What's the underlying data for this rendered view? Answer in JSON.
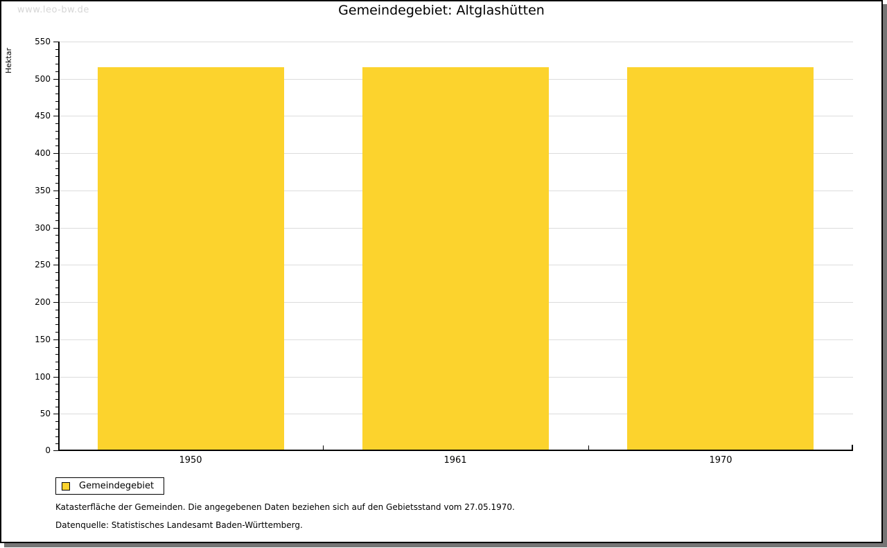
{
  "watermark": "www.leo-bw.de",
  "title": "Gemeindegebiet: Altglashütten",
  "chart_data": {
    "type": "bar",
    "title": "Gemeindegebiet: Altglashütten",
    "categories": [
      "1950",
      "1961",
      "1970"
    ],
    "series": [
      {
        "name": "Gemeindegebiet",
        "values": [
          516,
          516,
          516
        ]
      }
    ],
    "xlabel": "",
    "ylabel": "Hektar",
    "ylim": [
      0,
      550
    ],
    "ytick_step": 50,
    "yminor_step": 10,
    "grid": true,
    "legend_position": "bottom-left",
    "colors": {
      "bar": "#fcd32d",
      "grid": "#dcdcdc",
      "axis": "#000000"
    }
  },
  "legend": {
    "items": [
      {
        "label": "Gemeindegebiet",
        "color": "#fcd32d"
      }
    ]
  },
  "captions": [
    "Katasterfläche der Gemeinden. Die angegebenen Daten beziehen sich auf den Gebietsstand vom 27.05.1970.",
    "Datenquelle: Statistisches Landesamt Baden-Württemberg."
  ]
}
